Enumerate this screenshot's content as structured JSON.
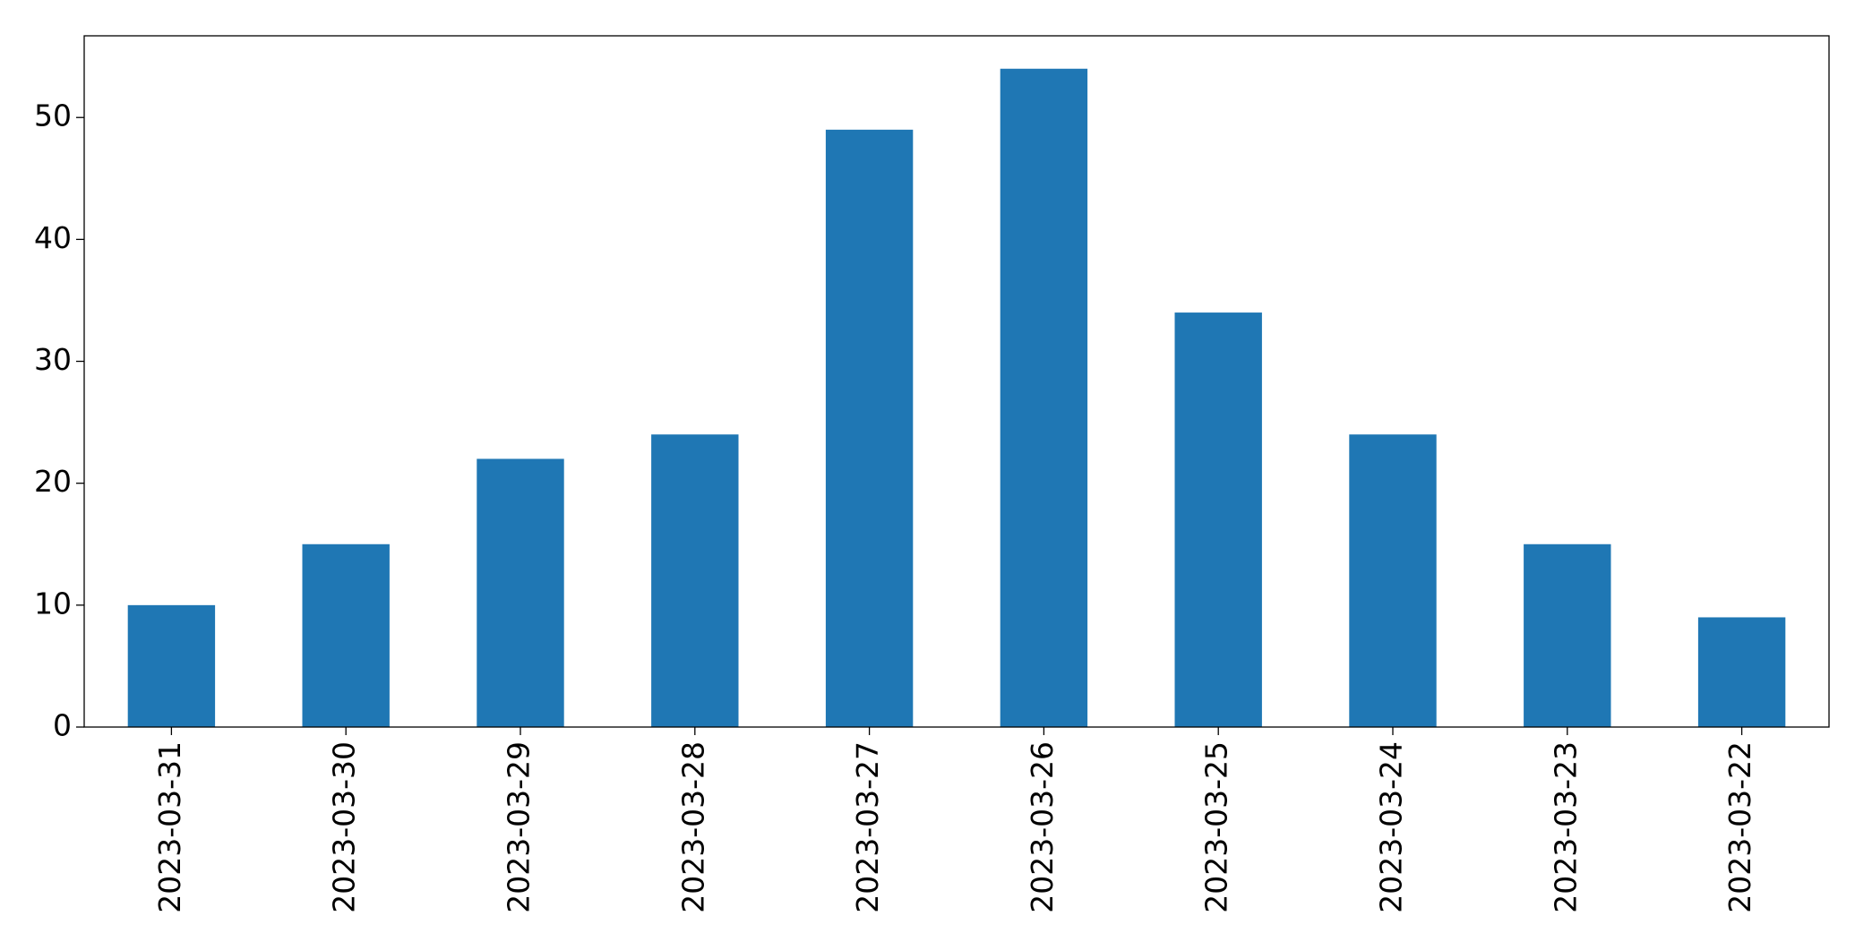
{
  "chart_data": {
    "type": "bar",
    "categories": [
      "2023-03-31",
      "2023-03-30",
      "2023-03-29",
      "2023-03-28",
      "2023-03-27",
      "2023-03-26",
      "2023-03-25",
      "2023-03-24",
      "2023-03-23",
      "2023-03-22"
    ],
    "values": [
      10,
      15,
      22,
      24,
      49,
      54,
      34,
      24,
      15,
      9
    ],
    "color": "#1f77b4",
    "ylim": [
      0,
      56.7
    ],
    "yticks": [
      0,
      10,
      20,
      30,
      40,
      50
    ],
    "grid": false
  }
}
